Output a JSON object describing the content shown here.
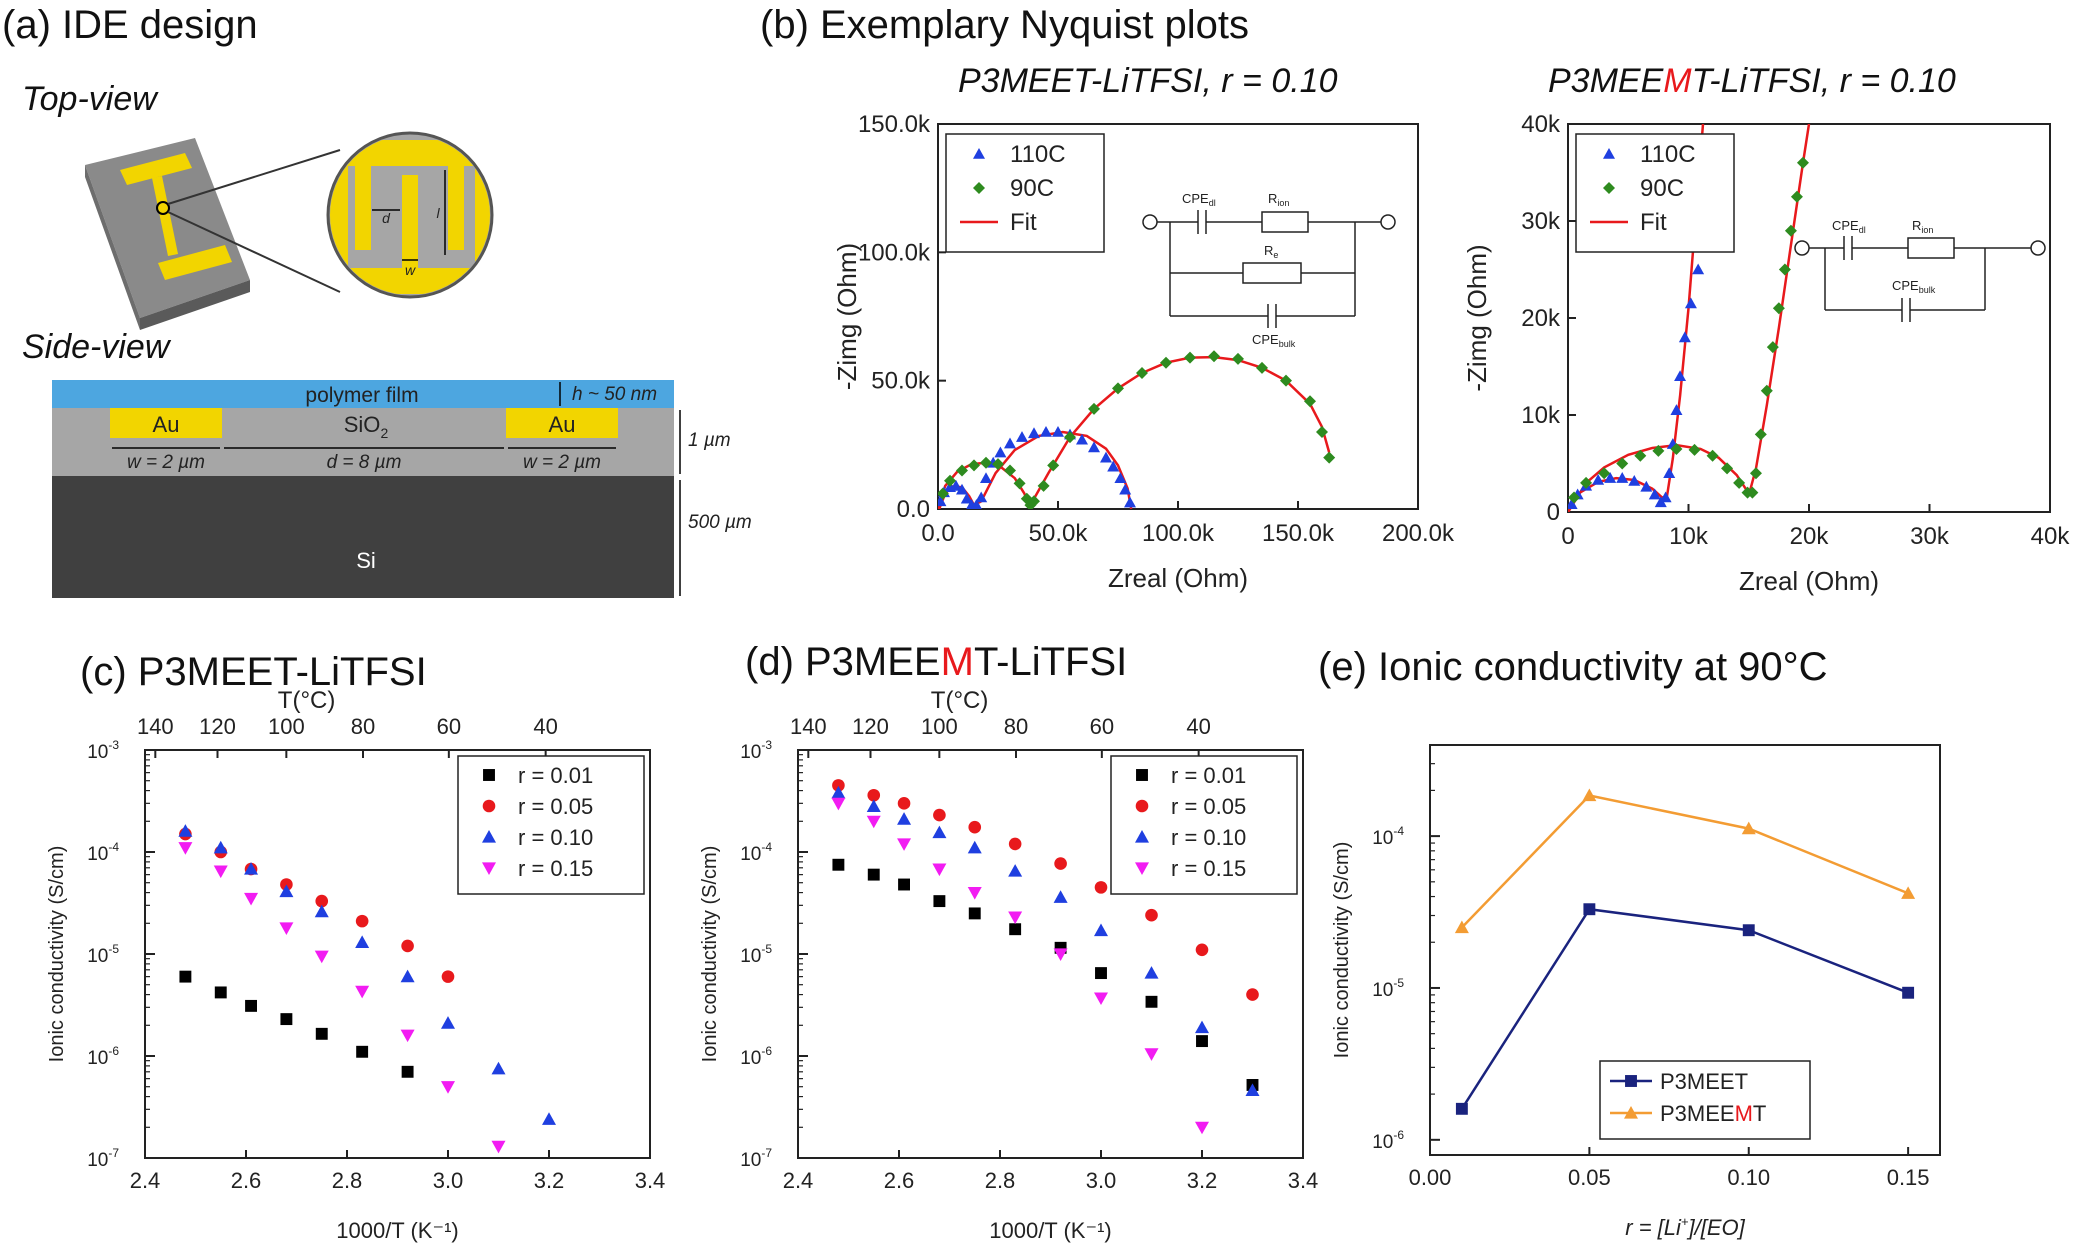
{
  "panel_a": {
    "title": "(a) IDE design",
    "top_view_label": "Top-view",
    "side_view_label": "Side-view",
    "dim_d": "d",
    "dim_l": "l",
    "dim_w": "w",
    "polymer_label": "polymer film",
    "thickness_label": "h ~ 50 nm",
    "au_left": "Au",
    "au_right": "Au",
    "sio2": "SiO",
    "sio2_sub": "2",
    "w_left": "w = 2 µm",
    "d_mid": "d = 8 µm",
    "w_right": "w = 2 µm",
    "oxide_thickness": "1 µm",
    "si_thickness": "500 µm",
    "si_label": "Si",
    "colors": {
      "gold": "#f2d500",
      "grey": "#a6a6a6",
      "dark": "#404040",
      "polymer": "#4da6e0"
    }
  },
  "panel_b": {
    "title": "(b) Exemplary Nyquist plots",
    "left_subtitle": "P3MEET-LiTFSI,  r = 0.10",
    "right_subtitle_pre": "P3MEE",
    "right_subtitle_hl": "M",
    "right_subtitle_post": "T-LiTFSI,  r = 0.10",
    "circuit_labels": {
      "cpe_dl": "CPE",
      "cpe_dl_sub": "dl",
      "r_ion": "R",
      "r_ion_sub": "ion",
      "r_e": "R",
      "r_e_sub": "e",
      "cpe_bulk": "CPE",
      "cpe_bulk_sub": "bulk"
    },
    "highlight_color": "#e8191c"
  },
  "panel_c": {
    "title": "(c) P3MEET-LiTFSI"
  },
  "panel_d": {
    "title_pre": "(d) P3MEE",
    "title_hl": "M",
    "title_post": "T-LiTFSI"
  },
  "panel_e": {
    "title": "(e) Ionic conductivity at 90°C"
  },
  "chart_data": [
    {
      "id": "b-left",
      "type": "scatter",
      "xlabel": "Zreal (Ohm)",
      "ylabel": "-Zimg (Ohm)",
      "xlim": [
        0,
        200000
      ],
      "ylim": [
        0,
        150000
      ],
      "xticks": [
        0,
        50000,
        100000,
        150000,
        200000
      ],
      "xtick_labels": [
        "0.0",
        "50.0k",
        "100.0k",
        "150.0k",
        "200.0k"
      ],
      "yticks": [
        0,
        50000,
        100000,
        150000
      ],
      "ytick_labels": [
        "0.0",
        "50.0k",
        "100.0k",
        "150.0k"
      ],
      "legend": "top-left",
      "series": [
        {
          "name": "110C",
          "marker": "triangle",
          "color": "#1f3fe0",
          "x": [
            1000,
            2500,
            5000,
            7500,
            10000,
            12000,
            14000,
            16000,
            18000,
            20000,
            23000,
            26000,
            30000,
            35000,
            40000,
            45000,
            50000,
            55000,
            60000,
            65000,
            70000,
            73000,
            76000,
            78000,
            80000
          ],
          "y": [
            3000,
            6500,
            8500,
            9000,
            7500,
            4000,
            1500,
            1500,
            4500,
            12000,
            18000,
            22000,
            25500,
            28000,
            29500,
            30000,
            30000,
            29000,
            27000,
            24000,
            20000,
            16500,
            12000,
            7500,
            2500
          ]
        },
        {
          "name": "90C",
          "marker": "diamond",
          "color": "#2e8b1f",
          "x": [
            2000,
            5000,
            10000,
            15000,
            20000,
            25000,
            30000,
            34000,
            37000,
            38500,
            40000,
            44000,
            48000,
            55000,
            65000,
            75000,
            85000,
            95000,
            105000,
            115000,
            125000,
            135000,
            145000,
            155000,
            160000,
            163000
          ],
          "y": [
            6000,
            11000,
            15000,
            17000,
            18000,
            17500,
            15000,
            10000,
            4000,
            1500,
            3000,
            9000,
            17000,
            28000,
            39000,
            47000,
            53000,
            57000,
            59000,
            59500,
            58500,
            55000,
            50000,
            42000,
            30000,
            20000
          ]
        },
        {
          "name": "Fit",
          "marker": "line",
          "color": "#e8191c",
          "x": [
            0,
            3000,
            8000,
            14000,
            20000,
            26000,
            32000,
            36000,
            37500,
            40000,
            46000,
            55000,
            65000,
            75000,
            85000,
            95000,
            105000,
            115000,
            125000,
            135000,
            145000,
            155000,
            160000,
            163000
          ],
          "y": [
            0,
            9000,
            14500,
            17500,
            18000,
            16500,
            12000,
            6000,
            2000,
            4000,
            14000,
            28000,
            39000,
            47000,
            53000,
            57000,
            59000,
            59200,
            58000,
            55000,
            50000,
            41000,
            32000,
            22000
          ]
        },
        {
          "name": "",
          "marker": "line",
          "color": "#e8191c",
          "x": [
            500,
            3000,
            6000,
            10000,
            13000,
            15000,
            18000,
            24000,
            32000,
            42000,
            52000,
            62000,
            70000,
            75000,
            79000,
            80500
          ],
          "y": [
            0,
            6000,
            8800,
            8500,
            5000,
            1500,
            3000,
            14000,
            23000,
            28500,
            30000,
            28500,
            23500,
            17000,
            8000,
            0
          ]
        }
      ]
    },
    {
      "id": "b-right",
      "type": "scatter",
      "xlabel": "Zreal (Ohm)",
      "ylabel": "-Zimg (Ohm)",
      "xlim": [
        0,
        40000
      ],
      "ylim": [
        0,
        40000
      ],
      "xticks": [
        0,
        10000,
        20000,
        30000,
        40000
      ],
      "xtick_labels": [
        "0",
        "10k",
        "20k",
        "30k",
        "40k"
      ],
      "yticks": [
        0,
        10000,
        20000,
        30000,
        40000
      ],
      "ytick_labels": [
        "0",
        "10k",
        "20k",
        "30k",
        "40k"
      ],
      "legend": "top-left",
      "series": [
        {
          "name": "110C",
          "marker": "triangle",
          "color": "#1f3fe0",
          "x": [
            300,
            800,
            1500,
            2500,
            3500,
            4500,
            5500,
            6500,
            7200,
            7700,
            8100,
            8400,
            8700,
            9000,
            9300,
            9700,
            10200,
            10800
          ],
          "y": [
            800,
            1800,
            2700,
            3300,
            3500,
            3500,
            3200,
            2600,
            1800,
            1000,
            1500,
            4000,
            7000,
            10500,
            14000,
            18000,
            21500,
            25000
          ]
        },
        {
          "name": "90C",
          "marker": "diamond",
          "color": "#2e8b1f",
          "x": [
            500,
            1500,
            3000,
            4500,
            6000,
            7500,
            9000,
            10500,
            12000,
            13200,
            14200,
            14900,
            15300,
            15600,
            16000,
            16500,
            17000,
            17500,
            18000,
            18500,
            19000,
            19500
          ],
          "y": [
            1500,
            3000,
            4000,
            5000,
            5800,
            6300,
            6500,
            6400,
            5800,
            4500,
            3000,
            2000,
            2000,
            4000,
            8000,
            12500,
            17000,
            21000,
            25000,
            29000,
            32500,
            36000
          ]
        },
        {
          "name": "Fit",
          "marker": "line",
          "color": "#e8191c",
          "x": [
            0,
            1500,
            3000,
            5000,
            7000,
            9000,
            11000,
            12500,
            14000,
            14800,
            15100,
            15600,
            16500,
            17500,
            18500,
            19500,
            20000
          ],
          "y": [
            0,
            3000,
            4600,
            5900,
            6600,
            6900,
            6500,
            5600,
            3800,
            2300,
            2200,
            4500,
            11000,
            19000,
            27500,
            36000,
            40000
          ]
        },
        {
          "name": "",
          "marker": "line",
          "color": "#e8191c",
          "x": [
            0,
            1000,
            2500,
            4000,
            5500,
            7000,
            7800,
            8200,
            8700,
            9300,
            10000,
            10700,
            11200
          ],
          "y": [
            0,
            2000,
            3100,
            3500,
            3300,
            2400,
            1500,
            1500,
            5500,
            12000,
            21000,
            32000,
            40000
          ]
        }
      ]
    },
    {
      "id": "c",
      "type": "scatter",
      "xlabel": "1000/T (K⁻¹)",
      "ylabel": "Ionic conductivity (S/cm)",
      "top_axis_label": "T(°C)",
      "top_ticks_celsius": [
        140,
        120,
        100,
        80,
        60,
        40
      ],
      "xlim": [
        2.4,
        3.4
      ],
      "ylim_log10": [
        -7,
        -3
      ],
      "xticks": [
        2.4,
        2.6,
        2.8,
        3.0,
        3.2,
        3.4
      ],
      "xtick_labels": [
        "2.4",
        "2.6",
        "2.8",
        "3.0",
        "3.2",
        "3.4"
      ],
      "ytick_labels": [
        "10",
        "10",
        "10",
        "10",
        "10"
      ],
      "ytick_exponents": [
        "-7",
        "-6",
        "-5",
        "-4",
        "-3"
      ],
      "legend": "top-right",
      "series": [
        {
          "name": "r = 0.01",
          "marker": "square",
          "color": "#000000",
          "x": [
            2.48,
            2.55,
            2.61,
            2.68,
            2.75,
            2.83,
            2.92
          ],
          "y": [
            6e-06,
            4.2e-06,
            3.1e-06,
            2.3e-06,
            1.65e-06,
            1.1e-06,
            7e-07
          ]
        },
        {
          "name": "r = 0.05",
          "marker": "circle",
          "color": "#e8191c",
          "x": [
            2.48,
            2.55,
            2.61,
            2.68,
            2.75,
            2.83,
            2.92,
            3.0
          ],
          "y": [
            0.00015,
            0.0001,
            6.8e-05,
            4.8e-05,
            3.3e-05,
            2.1e-05,
            1.2e-05,
            6e-06
          ]
        },
        {
          "name": "r = 0.10",
          "marker": "triangle",
          "color": "#1f3fe0",
          "x": [
            2.48,
            2.55,
            2.61,
            2.68,
            2.75,
            2.83,
            2.92,
            3.0,
            3.1,
            3.2
          ],
          "y": [
            0.00016,
            0.00011,
            6.8e-05,
            4.1e-05,
            2.6e-05,
            1.3e-05,
            6e-06,
            2.1e-06,
            7.5e-07,
            2.4e-07
          ]
        },
        {
          "name": "r = 0.15",
          "marker": "triangle-down",
          "color": "#f21cf2",
          "x": [
            2.48,
            2.55,
            2.61,
            2.68,
            2.75,
            2.83,
            2.92,
            3.0,
            3.1
          ],
          "y": [
            0.00011,
            6.5e-05,
            3.5e-05,
            1.8e-05,
            9.5e-06,
            4.3e-06,
            1.6e-06,
            5e-07,
            1.3e-07
          ]
        }
      ]
    },
    {
      "id": "d",
      "type": "scatter",
      "xlabel": "1000/T (K⁻¹)",
      "ylabel": "Ionic conductivity (S/cm)",
      "top_axis_label": "T(°C)",
      "top_ticks_celsius": [
        140,
        120,
        100,
        80,
        60,
        40
      ],
      "xlim": [
        2.4,
        3.4
      ],
      "ylim_log10": [
        -7,
        -3
      ],
      "xticks": [
        2.4,
        2.6,
        2.8,
        3.0,
        3.2,
        3.4
      ],
      "xtick_labels": [
        "2.4",
        "2.6",
        "2.8",
        "3.0",
        "3.2",
        "3.4"
      ],
      "ytick_labels": [
        "10",
        "10",
        "10",
        "10",
        "10"
      ],
      "ytick_exponents": [
        "-7",
        "-6",
        "-5",
        "-4",
        "-3"
      ],
      "legend": "top-right",
      "series": [
        {
          "name": "r = 0.01",
          "marker": "square",
          "color": "#000000",
          "x": [
            2.48,
            2.55,
            2.61,
            2.68,
            2.75,
            2.83,
            2.92,
            3.0,
            3.1,
            3.2,
            3.3
          ],
          "y": [
            7.5e-05,
            6e-05,
            4.8e-05,
            3.3e-05,
            2.5e-05,
            1.75e-05,
            1.15e-05,
            6.5e-06,
            3.4e-06,
            1.4e-06,
            5.2e-07
          ]
        },
        {
          "name": "r = 0.05",
          "marker": "circle",
          "color": "#e8191c",
          "x": [
            2.48,
            2.55,
            2.61,
            2.68,
            2.75,
            2.83,
            2.92,
            3.0,
            3.1,
            3.2,
            3.3
          ],
          "y": [
            0.00045,
            0.00036,
            0.0003,
            0.00023,
            0.000175,
            0.00012,
            7.7e-05,
            4.5e-05,
            2.4e-05,
            1.1e-05,
            4e-06
          ]
        },
        {
          "name": "r = 0.10",
          "marker": "triangle",
          "color": "#1f3fe0",
          "x": [
            2.48,
            2.55,
            2.61,
            2.68,
            2.75,
            2.83,
            2.92,
            3.0,
            3.1,
            3.2,
            3.3
          ],
          "y": [
            0.00038,
            0.00028,
            0.00021,
            0.000155,
            0.00011,
            6.5e-05,
            3.6e-05,
            1.7e-05,
            6.5e-06,
            1.9e-06,
            4.6e-07
          ]
        },
        {
          "name": "r = 0.15",
          "marker": "triangle-down",
          "color": "#f21cf2",
          "x": [
            2.48,
            2.55,
            2.61,
            2.68,
            2.75,
            2.83,
            2.92,
            3.0,
            3.1,
            3.2
          ],
          "y": [
            0.0003,
            0.0002,
            0.00012,
            6.8e-05,
            4e-05,
            2.3e-05,
            1e-05,
            3.7e-06,
            1.05e-06,
            2e-07
          ]
        }
      ]
    },
    {
      "id": "e",
      "type": "line",
      "xlabel_pre": "r = [Li",
      "xlabel_sup": "+",
      "xlabel_post": "]/[EO]",
      "ylabel": "Ionic conductivity (S/cm)",
      "xlim": [
        0,
        0.16
      ],
      "ylim_log10": [
        -6.1,
        -3.4
      ],
      "xticks": [
        0,
        0.05,
        0.1,
        0.15
      ],
      "xtick_labels": [
        "0.00",
        "0.05",
        "0.10",
        "0.15"
      ],
      "ytick_labels": [
        "10",
        "10",
        "10"
      ],
      "ytick_exponents": [
        "-6",
        "-5",
        "-4"
      ],
      "legend": "bottom-center",
      "series": [
        {
          "name": "P3MEET",
          "marker": "square",
          "color": "#1a237e",
          "x": [
            0.01,
            0.05,
            0.1,
            0.15
          ],
          "y": [
            1.6e-06,
            3.3e-05,
            2.4e-05,
            9.3e-06
          ]
        },
        {
          "name": "P3MEEMT",
          "name_pre": "P3MEE",
          "name_hl": "M",
          "name_post": "T",
          "marker": "triangle",
          "color": "#f39c33",
          "x": [
            0.01,
            0.05,
            0.1,
            0.15
          ],
          "y": [
            2.5e-05,
            0.000185,
            0.000112,
            4.2e-05
          ]
        }
      ]
    }
  ]
}
